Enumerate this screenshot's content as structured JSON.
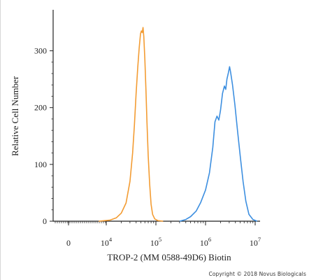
{
  "chart_data": {
    "type": "line",
    "title": "",
    "ylabel": "Relative Cell Number",
    "xlabel": "TROP-2 (MM 0588-49D6) Biotin",
    "x_scale": "biexponential",
    "ylim": [
      0,
      350
    ],
    "y_ticks": [
      {
        "value": 0,
        "label": "0"
      },
      {
        "value": 100,
        "label": "100"
      },
      {
        "value": 200,
        "label": "200"
      },
      {
        "value": 300,
        "label": "300"
      }
    ],
    "x_ticks": [
      {
        "value": 0,
        "base": "0",
        "exp": ""
      },
      {
        "value": 10000,
        "base": "10",
        "exp": "4"
      },
      {
        "value": 100000,
        "base": "10",
        "exp": "5"
      },
      {
        "value": 1000000,
        "base": "10",
        "exp": "6"
      },
      {
        "value": 10000000,
        "base": "10",
        "exp": "7"
      }
    ],
    "grid": false,
    "series": [
      {
        "color": "#f39c33",
        "points": [
          [
            8000,
            0
          ],
          [
            12000,
            2
          ],
          [
            16000,
            6
          ],
          [
            20000,
            14
          ],
          [
            25000,
            32
          ],
          [
            30000,
            70
          ],
          [
            34000,
            120
          ],
          [
            37000,
            170
          ],
          [
            40000,
            225
          ],
          [
            43000,
            270
          ],
          [
            46000,
            305
          ],
          [
            49000,
            330
          ],
          [
            51000,
            335
          ],
          [
            53000,
            332
          ],
          [
            55000,
            341
          ],
          [
            57000,
            325
          ],
          [
            60000,
            285
          ],
          [
            63000,
            230
          ],
          [
            66000,
            175
          ],
          [
            70000,
            115
          ],
          [
            75000,
            65
          ],
          [
            80000,
            30
          ],
          [
            86000,
            12
          ],
          [
            95000,
            4
          ],
          [
            110000,
            1
          ],
          [
            140000,
            0
          ]
        ]
      },
      {
        "color": "#3d8fe0",
        "points": [
          [
            300000,
            0
          ],
          [
            400000,
            3
          ],
          [
            500000,
            8
          ],
          [
            650000,
            18
          ],
          [
            800000,
            33
          ],
          [
            1000000,
            55
          ],
          [
            1200000,
            85
          ],
          [
            1400000,
            130
          ],
          [
            1550000,
            175
          ],
          [
            1700000,
            185
          ],
          [
            1850000,
            178
          ],
          [
            2000000,
            195
          ],
          [
            2200000,
            225
          ],
          [
            2400000,
            238
          ],
          [
            2550000,
            232
          ],
          [
            2700000,
            250
          ],
          [
            2900000,
            262
          ],
          [
            3050000,
            272
          ],
          [
            3200000,
            262
          ],
          [
            3500000,
            240
          ],
          [
            3900000,
            205
          ],
          [
            4400000,
            160
          ],
          [
            5000000,
            115
          ],
          [
            5700000,
            70
          ],
          [
            6500000,
            35
          ],
          [
            7500000,
            12
          ],
          [
            9000000,
            3
          ],
          [
            11000000,
            0
          ]
        ]
      }
    ]
  },
  "copyright": "Copyright © 2018 Novus Biologicals"
}
